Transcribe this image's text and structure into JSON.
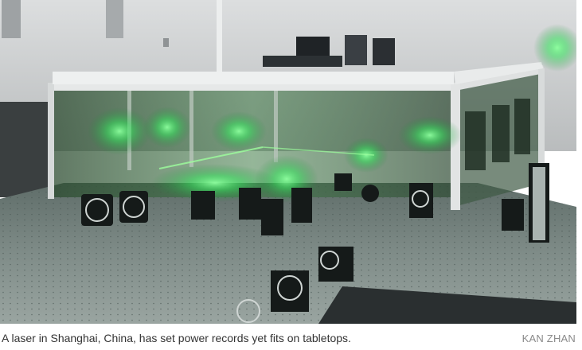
{
  "figure": {
    "caption": "A laser in Shanghai, China, has set power records yet fits on tabletops.",
    "credit": "KAN ZHAN"
  },
  "photo": {
    "subject": "laser-lab-tabletop",
    "colors": {
      "wall": "#c9cbcd",
      "table": "#7d8a86",
      "laser_green": "#39ff6a",
      "frame": "#e6e8e8",
      "optics_dark": "#1a1f1e"
    }
  }
}
